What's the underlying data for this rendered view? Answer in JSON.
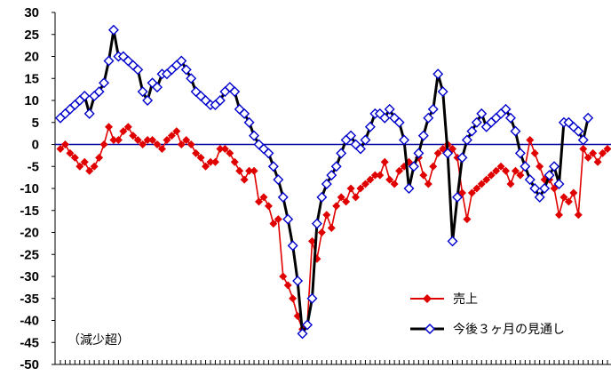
{
  "chart_data": {
    "type": "line",
    "ylim": [
      -50,
      30
    ],
    "ytick_step": 5,
    "zero_line_color": "#0000a0",
    "annotation": "（減少超）",
    "series": [
      {
        "name": "売上",
        "color": "#e00000",
        "marker": "filled-diamond",
        "values": [
          -1,
          0,
          -2,
          -3,
          -5,
          -4,
          -6,
          -5,
          -3,
          0,
          4,
          1,
          1,
          3,
          4,
          2,
          1,
          0,
          1,
          1,
          0,
          -1,
          1,
          2,
          3,
          0,
          1,
          0,
          -2,
          -3,
          -5,
          -4,
          -4,
          -1,
          -1,
          -2,
          -4,
          -6,
          -8,
          -6,
          -6,
          -13,
          -12,
          -14,
          -18,
          -17,
          -30,
          -32,
          -35,
          -39,
          -42,
          -41,
          -22,
          -26,
          -20,
          -16,
          -19,
          -14,
          -12,
          -13,
          -10,
          -12,
          -10,
          -9,
          -8,
          -7,
          -7,
          -4,
          -8,
          -9,
          -6,
          -5,
          -4,
          -5,
          -3,
          -7,
          -9,
          -5,
          -2,
          -1,
          0,
          -1,
          -3,
          -11,
          -17,
          -11,
          -10,
          -9,
          -8,
          -7,
          -6,
          -5,
          -6,
          -9,
          -6,
          -7,
          -5,
          1,
          -2,
          -5,
          -8,
          -8,
          -10,
          -16,
          -12,
          -13,
          -11,
          -16,
          -1,
          -3,
          -2,
          -4,
          -2,
          -1
        ]
      },
      {
        "name": "今後３ヶ月の見通し",
        "color": "#000000",
        "marker": "open-diamond",
        "marker_color": "#0000cc",
        "values": [
          6,
          7,
          8,
          9,
          10,
          11,
          7,
          11,
          12,
          14,
          19,
          26,
          20,
          20,
          19,
          18,
          17,
          12,
          10,
          14,
          13,
          16,
          16,
          17,
          18,
          19,
          17,
          15,
          12,
          11,
          10,
          9,
          9,
          10,
          12,
          13,
          12,
          8,
          7,
          5,
          2,
          0,
          -1,
          -2,
          -5,
          -8,
          -12,
          -17,
          -23,
          -31,
          -43,
          -41,
          -35,
          -18,
          -12,
          -9,
          -7,
          -5,
          -2,
          1,
          2,
          0,
          -1,
          1,
          4,
          7,
          7,
          6,
          8,
          6,
          5,
          1,
          -10,
          -5,
          -2,
          2,
          6,
          8,
          16,
          12,
          -2,
          -22,
          -12,
          -3,
          1,
          3,
          5,
          7,
          4,
          5,
          6,
          7,
          8,
          6,
          3,
          -2,
          -5,
          -8,
          -10,
          -12,
          -10,
          -7,
          -5,
          -9,
          5,
          5,
          4,
          3,
          1,
          6
        ]
      }
    ]
  }
}
